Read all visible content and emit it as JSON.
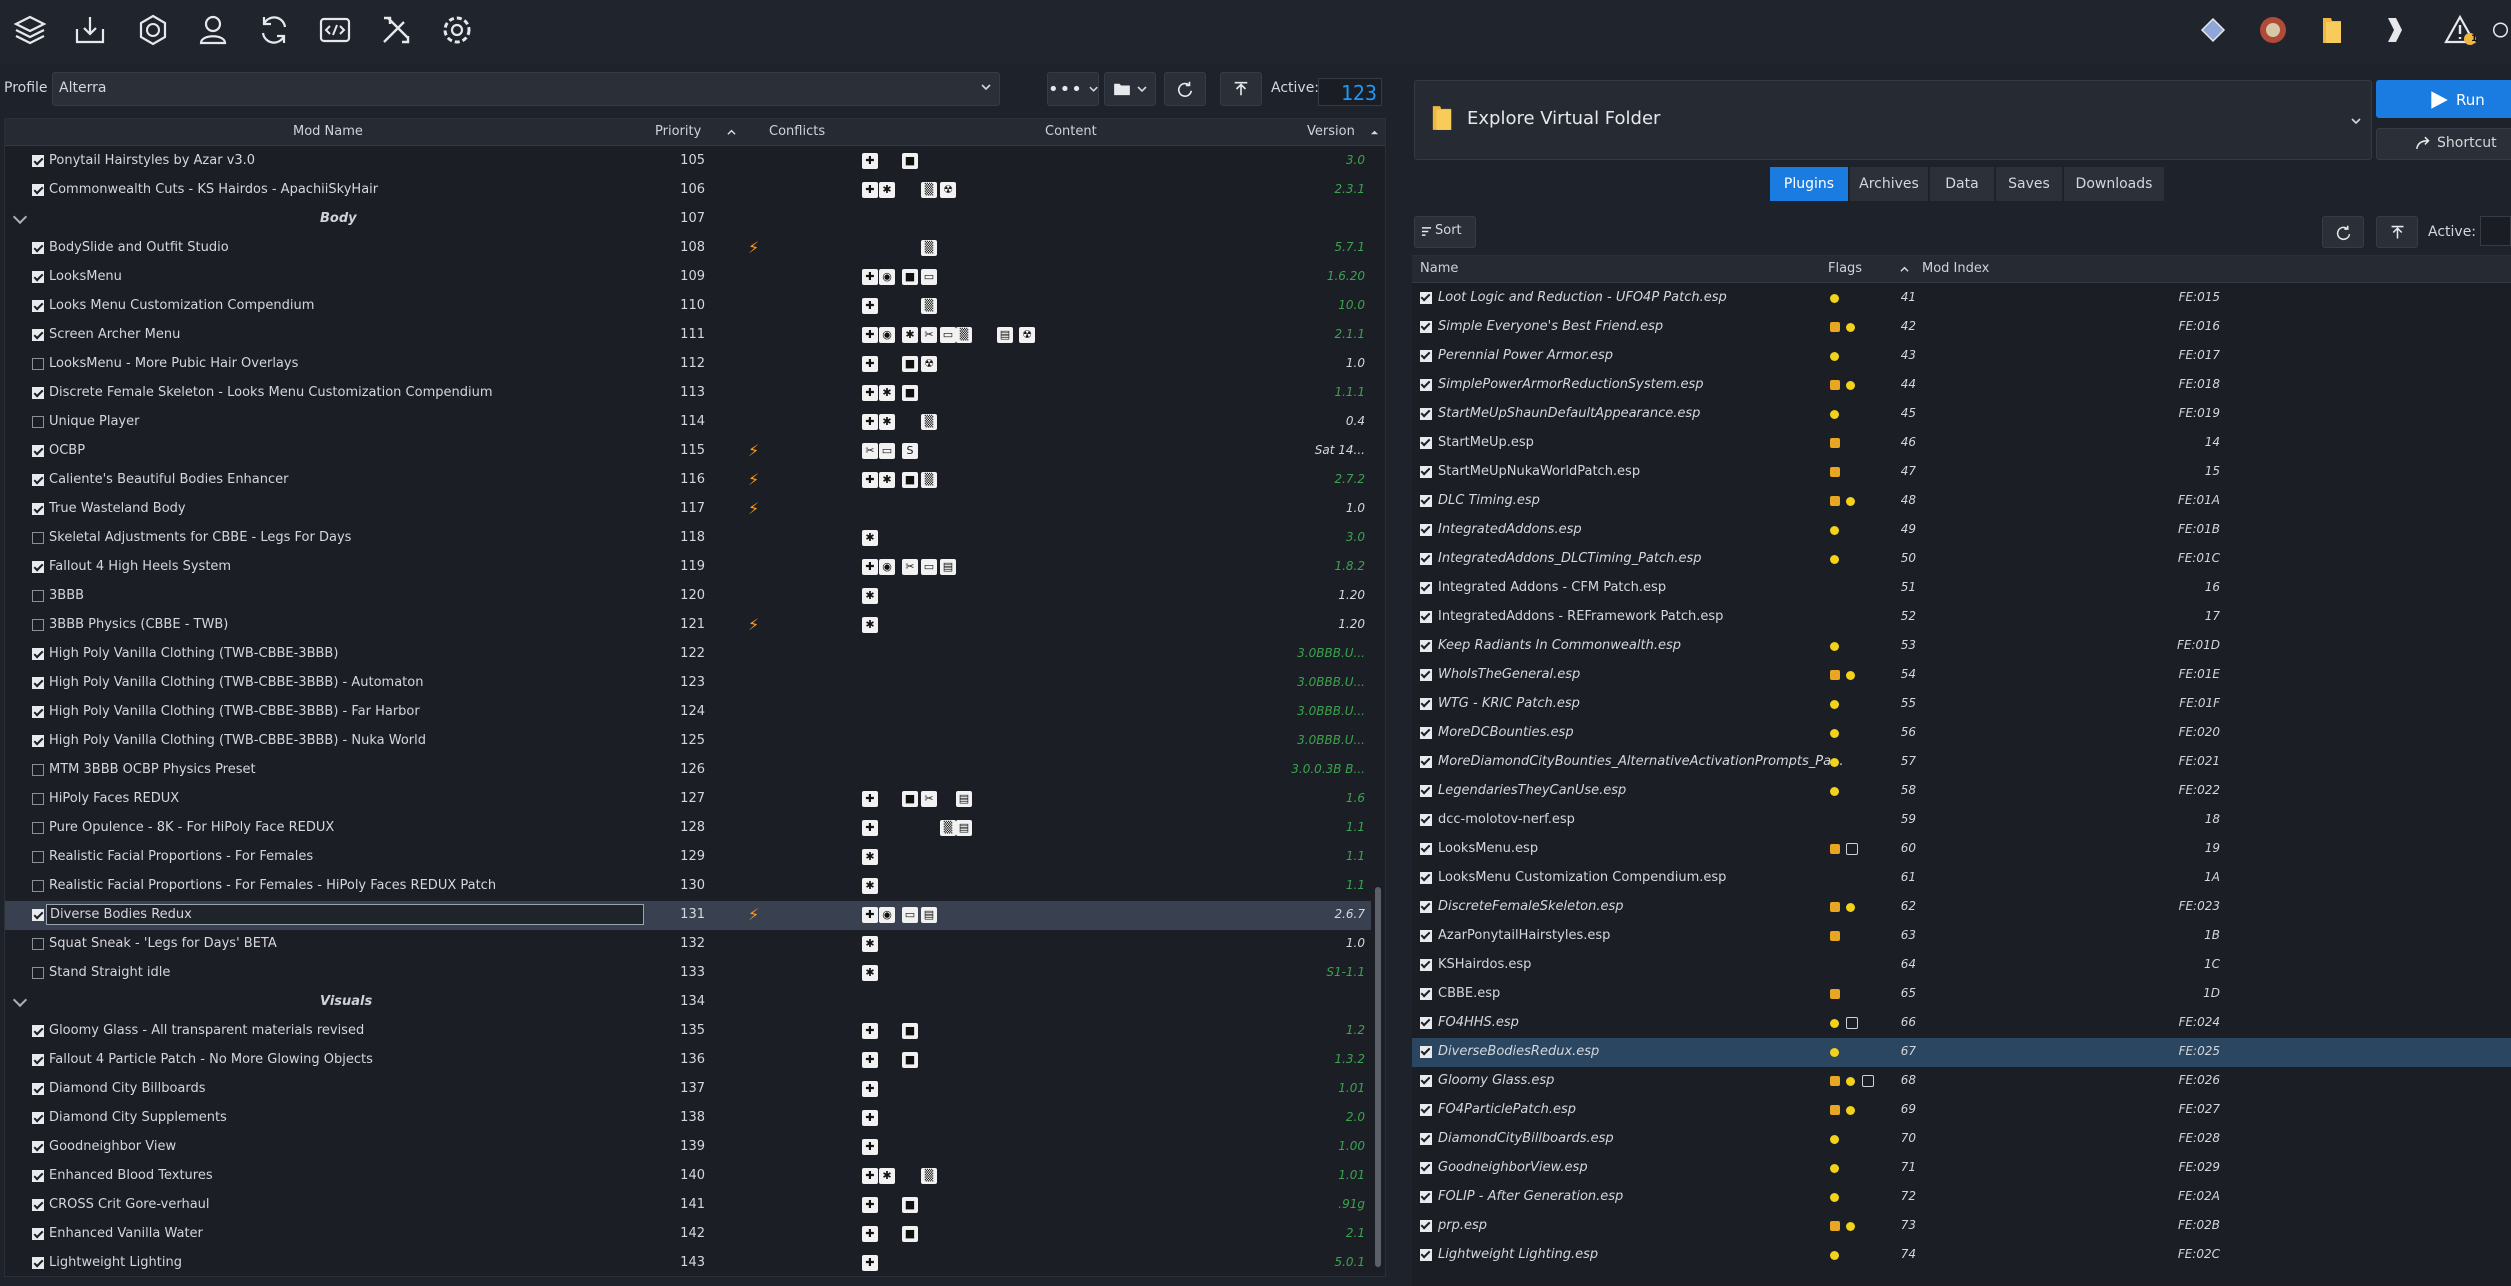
{
  "toolbar": {
    "left_icons": [
      "layers-icon",
      "install-icon",
      "nexus-icon",
      "profile-icon",
      "refresh-icon",
      "executables-icon",
      "tools-icon",
      "settings-icon"
    ],
    "right_icons": [
      "game-icon",
      "globe-icon",
      "folder-icon",
      "chevron-icon",
      "warning-icon"
    ],
    "warning_count": "1"
  },
  "profile": {
    "label": "Profile",
    "value": "Alterra",
    "active_label": "Active:",
    "active_count": "123"
  },
  "modlist": {
    "headers": {
      "name": "Mod Name",
      "priority": "Priority",
      "conflicts": "Conflicts",
      "content": "Content",
      "version": "Version"
    },
    "rows": [
      {
        "name": "Ponytail Hairstyles by Azar v3.0",
        "priority": "105",
        "version": "3.0",
        "checked": true,
        "bolt": "",
        "icons": [
          "✚",
          "",
          "■"
        ]
      },
      {
        "name": "Commonwealth Cuts - KS Hairdos - ApachiiSkyHair",
        "priority": "106",
        "version": "2.3.1",
        "checked": true,
        "icons": [
          "✚",
          "✱",
          "",
          "▒",
          "☢"
        ]
      },
      {
        "name": "Body",
        "priority": "107",
        "separator": true
      },
      {
        "name": "BodySlide and Outfit Studio",
        "priority": "108",
        "version": "5.7.1",
        "checked": true,
        "bolt": "⚡",
        "icons": [
          "",
          "",
          "",
          "▒"
        ]
      },
      {
        "name": "LooksMenu",
        "priority": "109",
        "version": "1.6.20",
        "checked": true,
        "icons": [
          "✚",
          "◉",
          "■",
          "▭"
        ]
      },
      {
        "name": "Looks Menu Customization Compendium",
        "priority": "110",
        "version": "10.0",
        "checked": true,
        "icons": [
          "✚",
          "",
          "",
          "▒"
        ]
      },
      {
        "name": "Screen Archer Menu",
        "priority": "111",
        "version": "2.1.1",
        "checked": true,
        "icons": [
          "✚",
          "◉",
          "✱",
          "✂",
          "▭",
          "▒",
          "▤",
          "☢"
        ]
      },
      {
        "name": "LooksMenu - More Pubic Hair Overlays",
        "priority": "112",
        "version": "1.0",
        "checked": false,
        "icons": [
          "✚",
          "",
          "■",
          "☢"
        ]
      },
      {
        "name": "Discrete Female Skeleton - Looks Menu Customization Compendium",
        "priority": "113",
        "version": "1.1.1",
        "checked": true,
        "icons": [
          "✚",
          "✱",
          "■"
        ]
      },
      {
        "name": "Unique Player",
        "priority": "114",
        "version": "0.4",
        "checked": false,
        "icons": [
          "✚",
          "✱",
          "",
          "▒"
        ]
      },
      {
        "name": "OCBP",
        "priority": "115",
        "version": "Sat 14...",
        "checked": true,
        "bolt": "⚡",
        "icons": [
          "✂",
          "▭",
          "S"
        ]
      },
      {
        "name": "Caliente's Beautiful Bodies Enhancer",
        "priority": "116",
        "version": "2.7.2",
        "checked": true,
        "bolt": "⚡",
        "icons": [
          "✚",
          "✱",
          "■",
          "▒"
        ]
      },
      {
        "name": "True Wasteland Body",
        "priority": "117",
        "version": "1.0",
        "checked": true,
        "bolt": "⚡",
        "icons": []
      },
      {
        "name": "Skeletal Adjustments for CBBE - Legs For Days",
        "priority": "118",
        "version": "3.0",
        "checked": false,
        "icons": [
          "✱"
        ]
      },
      {
        "name": "Fallout 4 High Heels System",
        "priority": "119",
        "version": "1.8.2",
        "checked": true,
        "icons": [
          "✚",
          "◉",
          "✂",
          "▭",
          "▤"
        ]
      },
      {
        "name": "3BBB",
        "priority": "120",
        "version": "1.20",
        "checked": false,
        "icons": [
          "✱"
        ]
      },
      {
        "name": "3BBB Physics (CBBE - TWB)",
        "priority": "121",
        "version": "1.20",
        "checked": false,
        "bolt": "⚡",
        "icons": [
          "✱"
        ]
      },
      {
        "name": "High Poly Vanilla Clothing (TWB-CBBE-3BBB)",
        "priority": "122",
        "version": "3.0BBB.U...",
        "checked": true,
        "icons": []
      },
      {
        "name": "High Poly Vanilla Clothing (TWB-CBBE-3BBB) - Automaton",
        "priority": "123",
        "version": "3.0BBB.U...",
        "checked": true,
        "icons": []
      },
      {
        "name": "High Poly Vanilla Clothing (TWB-CBBE-3BBB) - Far Harbor",
        "priority": "124",
        "version": "3.0BBB.U...",
        "checked": true,
        "icons": []
      },
      {
        "name": "High Poly Vanilla Clothing (TWB-CBBE-3BBB) - Nuka World",
        "priority": "125",
        "version": "3.0BBB.U...",
        "checked": true,
        "icons": []
      },
      {
        "name": "MTM 3BBB OCBP Physics Preset",
        "priority": "126",
        "version": "3.0.0.3B B...",
        "checked": false,
        "icons": []
      },
      {
        "name": "HiPoly Faces REDUX",
        "priority": "127",
        "version": "1.6",
        "checked": false,
        "icons": [
          "✚",
          "",
          "■",
          "✂",
          "",
          "▤"
        ]
      },
      {
        "name": "Pure Opulence - 8K - For HiPoly Face REDUX",
        "priority": "128",
        "version": "1.1",
        "checked": false,
        "icons": [
          "✚",
          "",
          "",
          "",
          "▒",
          "▤"
        ]
      },
      {
        "name": "Realistic Facial Proportions - For Females",
        "priority": "129",
        "version": "1.1",
        "checked": false,
        "icons": [
          "✱"
        ]
      },
      {
        "name": "Realistic Facial Proportions - For Females - HiPoly Faces REDUX Patch",
        "priority": "130",
        "version": "1.1",
        "checked": false,
        "icons": [
          "✱"
        ]
      },
      {
        "name": "Diverse Bodies Redux",
        "priority": "131",
        "version": "2.6.7",
        "checked": true,
        "selected": true,
        "bolt": "⚡",
        "icons": [
          "✚",
          "◉",
          "▭",
          "▤"
        ]
      },
      {
        "name": "Squat Sneak - 'Legs for Days' BETA",
        "priority": "132",
        "version": "1.0",
        "checked": false,
        "icons": [
          "✱"
        ]
      },
      {
        "name": "Stand Straight idle",
        "priority": "133",
        "version": "S1-1.1",
        "checked": false,
        "icons": [
          "✱"
        ]
      },
      {
        "name": "Visuals",
        "priority": "134",
        "separator": true
      },
      {
        "name": "Gloomy Glass - All transparent materials revised",
        "priority": "135",
        "version": "1.2",
        "checked": true,
        "icons": [
          "✚",
          "",
          "■"
        ]
      },
      {
        "name": "Fallout 4 Particle Patch - No More Glowing Objects",
        "priority": "136",
        "version": "1.3.2",
        "checked": true,
        "icons": [
          "✚",
          "",
          "■"
        ]
      },
      {
        "name": "Diamond City Billboards",
        "priority": "137",
        "version": "1.01",
        "checked": true,
        "icons": [
          "✚"
        ]
      },
      {
        "name": "Diamond City Supplements",
        "priority": "138",
        "version": "2.0",
        "checked": true,
        "icons": [
          "✚"
        ]
      },
      {
        "name": "Goodneighbor View",
        "priority": "139",
        "version": "1.00",
        "checked": true,
        "icons": [
          "✚"
        ]
      },
      {
        "name": "Enhanced Blood Textures",
        "priority": "140",
        "version": "1.01",
        "checked": true,
        "icons": [
          "✚",
          "✱",
          "",
          "▒"
        ]
      },
      {
        "name": "CROSS Crit Gore-verhaul",
        "priority": "141",
        "version": ".91g",
        "checked": true,
        "icons": [
          "✚",
          "",
          "■"
        ]
      },
      {
        "name": "Enhanced Vanilla Water",
        "priority": "142",
        "version": "2.1",
        "checked": true,
        "icons": [
          "✚",
          "",
          "■"
        ]
      },
      {
        "name": "Lightweight Lighting",
        "priority": "143",
        "version": "5.0.1",
        "checked": true,
        "icons": [
          "✚"
        ]
      }
    ]
  },
  "right": {
    "folder_title": "Explore Virtual Folder",
    "run_label": "Run",
    "shortcut_label": "Shortcut",
    "tabs": [
      "Plugins",
      "Archives",
      "Data",
      "Saves",
      "Downloads"
    ],
    "active_tab": "Plugins",
    "sort_label": "Sort",
    "active_label": "Active:",
    "headers": {
      "name": "Name",
      "flags": "Flags",
      "mod_index": "Mod Index"
    }
  },
  "plugins": [
    {
      "name": "Loot Logic and Reduction - UFO4P Patch.esp",
      "idx": "41",
      "mi": "FE:015",
      "italic": true,
      "flags": [
        "dot"
      ]
    },
    {
      "name": "Simple Everyone's Best Friend.esp",
      "idx": "42",
      "mi": "FE:016",
      "italic": true,
      "flags": [
        "box",
        "dot"
      ]
    },
    {
      "name": "Perennial Power Armor.esp",
      "idx": "43",
      "mi": "FE:017",
      "italic": true,
      "flags": [
        "dot"
      ]
    },
    {
      "name": "SimplePowerArmorReductionSystem.esp",
      "idx": "44",
      "mi": "FE:018",
      "italic": true,
      "flags": [
        "box",
        "dot"
      ]
    },
    {
      "name": "StartMeUpShaunDefaultAppearance.esp",
      "idx": "45",
      "mi": "FE:019",
      "italic": true,
      "flags": [
        "dot"
      ]
    },
    {
      "name": "StartMeUp.esp",
      "idx": "46",
      "mi": "14",
      "italic": false,
      "flags": [
        "box"
      ]
    },
    {
      "name": "StartMeUpNukaWorldPatch.esp",
      "idx": "47",
      "mi": "15",
      "italic": false,
      "flags": [
        "box"
      ]
    },
    {
      "name": "DLC Timing.esp",
      "idx": "48",
      "mi": "FE:01A",
      "italic": true,
      "flags": [
        "box",
        "dot"
      ]
    },
    {
      "name": "IntegratedAddons.esp",
      "idx": "49",
      "mi": "FE:01B",
      "italic": true,
      "flags": [
        "dot"
      ]
    },
    {
      "name": "IntegratedAddons_DLCTiming_Patch.esp",
      "idx": "50",
      "mi": "FE:01C",
      "italic": true,
      "flags": [
        "dot"
      ]
    },
    {
      "name": "Integrated Addons - CFM Patch.esp",
      "idx": "51",
      "mi": "16",
      "italic": false,
      "flags": []
    },
    {
      "name": "IntegratedAddons - REFramework Patch.esp",
      "idx": "52",
      "mi": "17",
      "italic": false,
      "flags": []
    },
    {
      "name": "Keep Radiants In Commonwealth.esp",
      "idx": "53",
      "mi": "FE:01D",
      "italic": true,
      "flags": [
        "dot"
      ]
    },
    {
      "name": "WhoIsTheGeneral.esp",
      "idx": "54",
      "mi": "FE:01E",
      "italic": true,
      "flags": [
        "box",
        "dot"
      ]
    },
    {
      "name": "WTG - KRIC Patch.esp",
      "idx": "55",
      "mi": "FE:01F",
      "italic": true,
      "flags": [
        "dot"
      ]
    },
    {
      "name": "MoreDCBounties.esp",
      "idx": "56",
      "mi": "FE:020",
      "italic": true,
      "flags": [
        "dot"
      ]
    },
    {
      "name": "MoreDiamondCityBounties_AlternativeActivationPrompts_Pa...",
      "idx": "57",
      "mi": "FE:021",
      "italic": true,
      "flags": [
        "dot"
      ]
    },
    {
      "name": "LegendariesTheyCanUse.esp",
      "idx": "58",
      "mi": "FE:022",
      "italic": true,
      "flags": [
        "dot"
      ]
    },
    {
      "name": "dcc-molotov-nerf.esp",
      "idx": "59",
      "mi": "18",
      "italic": false,
      "flags": []
    },
    {
      "name": "LooksMenu.esp",
      "idx": "60",
      "mi": "19",
      "italic": false,
      "flags": [
        "box",
        "sq"
      ]
    },
    {
      "name": "LooksMenu Customization Compendium.esp",
      "idx": "61",
      "mi": "1A",
      "italic": false,
      "flags": []
    },
    {
      "name": "DiscreteFemaleSkeleton.esp",
      "idx": "62",
      "mi": "FE:023",
      "italic": true,
      "flags": [
        "box",
        "dot"
      ]
    },
    {
      "name": "AzarPonytailHairstyles.esp",
      "idx": "63",
      "mi": "1B",
      "italic": false,
      "flags": [
        "box"
      ]
    },
    {
      "name": "KSHairdos.esp",
      "idx": "64",
      "mi": "1C",
      "italic": false,
      "flags": []
    },
    {
      "name": "CBBE.esp",
      "idx": "65",
      "mi": "1D",
      "italic": false,
      "flags": [
        "box"
      ]
    },
    {
      "name": "FO4HHS.esp",
      "idx": "66",
      "mi": "FE:024",
      "italic": true,
      "flags": [
        "dot",
        "sq"
      ]
    },
    {
      "name": "DiverseBodiesRedux.esp",
      "idx": "67",
      "mi": "FE:025",
      "italic": true,
      "flags": [
        "dot"
      ],
      "selected": true
    },
    {
      "name": "Gloomy Glass.esp",
      "idx": "68",
      "mi": "FE:026",
      "italic": true,
      "flags": [
        "box",
        "dot",
        "sq"
      ]
    },
    {
      "name": "FO4ParticlePatch.esp",
      "idx": "69",
      "mi": "FE:027",
      "italic": true,
      "flags": [
        "box",
        "dot"
      ]
    },
    {
      "name": "DiamondCityBillboards.esp",
      "idx": "70",
      "mi": "FE:028",
      "italic": true,
      "flags": [
        "dot"
      ]
    },
    {
      "name": "GoodneighborView.esp",
      "idx": "71",
      "mi": "FE:029",
      "italic": true,
      "flags": [
        "dot"
      ]
    },
    {
      "name": "FOLIP - After Generation.esp",
      "idx": "72",
      "mi": "FE:02A",
      "italic": true,
      "flags": [
        "dot"
      ]
    },
    {
      "name": "prp.esp",
      "idx": "73",
      "mi": "FE:02B",
      "italic": true,
      "flags": [
        "box",
        "dot"
      ]
    },
    {
      "name": "Lightweight Lighting.esp",
      "idx": "74",
      "mi": "FE:02C",
      "italic": true,
      "flags": [
        "dot"
      ]
    }
  ]
}
